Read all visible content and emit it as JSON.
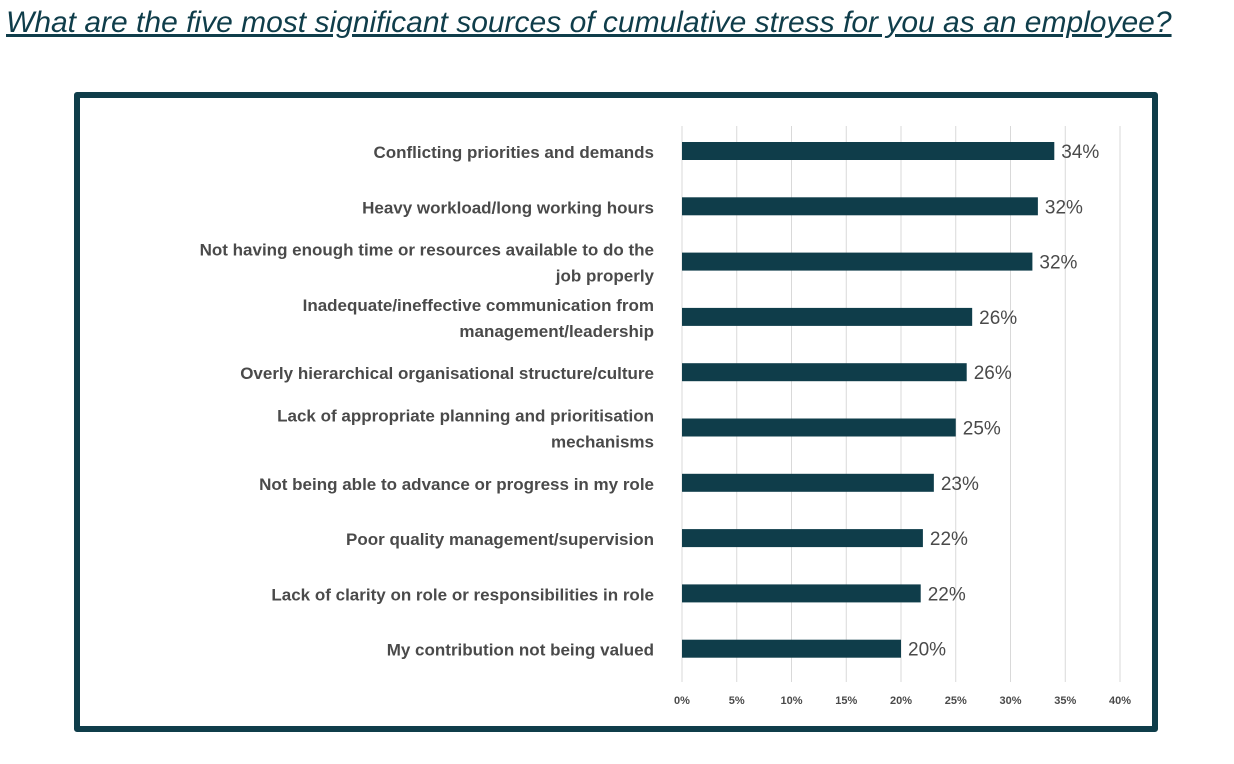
{
  "title": "What are the five most significant sources of cumulative stress for you as an employee?",
  "colors": {
    "title_text": "#0f3d4a",
    "frame": "#0f3d4a",
    "bar": "#0f3d4a",
    "category_text": "#4a4a4a",
    "value_text": "#4a4a4a",
    "tick_text": "#4a4a4a",
    "gridline": "#d9d9d9"
  },
  "chart_data": {
    "type": "bar",
    "orientation": "horizontal",
    "title": "",
    "xlabel": "",
    "ylabel": "",
    "categories": [
      [
        "Conflicting priorities and demands"
      ],
      [
        "Heavy workload/long working hours"
      ],
      [
        "Not having enough time or resources available to do the",
        "job properly"
      ],
      [
        "Inadequate/ineffective communication from",
        "management/leadership"
      ],
      [
        "Overly hierarchical organisational structure/culture"
      ],
      [
        "Lack of appropriate planning and prioritisation",
        "mechanisms"
      ],
      [
        "Not being able to advance or progress in my role"
      ],
      [
        "Poor quality management/supervision"
      ],
      [
        "Lack of clarity on role or responsibilities in role"
      ],
      [
        "My contribution not being valued"
      ]
    ],
    "values": [
      34,
      32.5,
      32,
      26.5,
      26,
      25,
      23,
      22,
      21.8,
      20
    ],
    "value_labels": [
      "34%",
      "32%",
      "32%",
      "26%",
      "26%",
      "25%",
      "23%",
      "22%",
      "22%",
      "20%"
    ],
    "xlim": [
      0,
      40
    ],
    "x_ticks": [
      0,
      5,
      10,
      15,
      20,
      25,
      30,
      35,
      40
    ],
    "x_tick_labels": [
      "0%",
      "5%",
      "10%",
      "15%",
      "20%",
      "25%",
      "30%",
      "35%",
      "40%"
    ],
    "grid": "vertical",
    "legend": "none"
  }
}
